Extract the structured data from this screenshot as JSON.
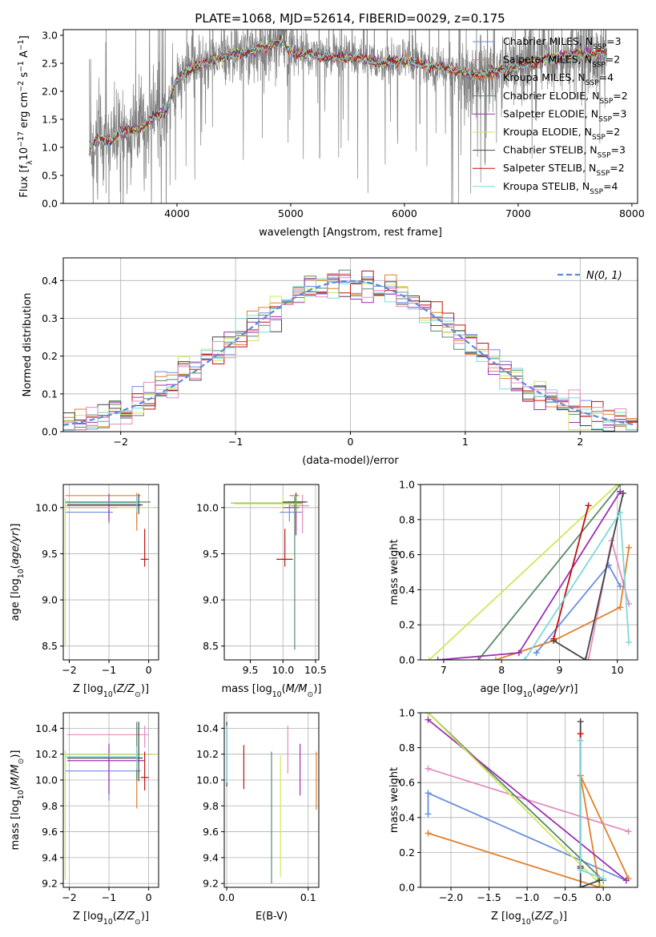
{
  "figure_title": "PLATE=1068, MJD=52614, FIBERID=0029, z=0.175",
  "colors": {
    "Chabrier MILES": "#6a8ee0",
    "Salpeter MILES": "#e07b7b",
    "Kroupa MILES": "#e0802a",
    "Chabrier ELODIE": "#5a8a68",
    "Salpeter ELODIE": "#9b30b0",
    "Kroupa ELODIE": "#cfe85a",
    "Chabrier STELIB": "#444444",
    "Salpeter STELIB": "#c01010",
    "Kroupa STELIB": "#7fd8dc",
    "data": "#808080",
    "gauss": "#5b8bd8",
    "grid": "#b0b0b0",
    "pink": "#e48cc0",
    "green": "#7ac04a"
  },
  "chart_data": [
    {
      "id": "spectrum",
      "type": "line",
      "xlabel": "wavelength [Angstrom, rest frame]",
      "ylabel": "Flux [fλ10⁻¹⁷ erg cm⁻² s⁻¹ A⁻¹]",
      "xlim": [
        3000,
        8050
      ],
      "ylim": [
        0,
        3.1
      ],
      "xticks": [
        4000,
        5000,
        6000,
        7000,
        8000
      ],
      "yticks": [
        0.0,
        0.5,
        1.0,
        1.5,
        2.0,
        2.5,
        3.0
      ],
      "grid": false,
      "legend_position": "top-right",
      "legend": [
        {
          "name": "Chabrier MILES, N",
          "sub": "SSP",
          "n": "=3",
          "color": "#6a8ee0"
        },
        {
          "name": "Salpeter MILES, N",
          "sub": "SSP",
          "n": "=2",
          "color": "#e07b7b"
        },
        {
          "name": "Kroupa MILES, N",
          "sub": "SSP",
          "n": "=4",
          "color": "#e0802a"
        },
        {
          "name": "Chabrier ELODIE, N",
          "sub": "SSP",
          "n": "=2",
          "color": "#5a8a68"
        },
        {
          "name": "Salpeter ELODIE, N",
          "sub": "SSP",
          "n": "=3",
          "color": "#9b30b0"
        },
        {
          "name": "Kroupa ELODIE, N",
          "sub": "SSP",
          "n": "=2",
          "color": "#cfe85a"
        },
        {
          "name": "Chabrier STELIB, N",
          "sub": "SSP",
          "n": "=3",
          "color": "#444444"
        },
        {
          "name": "Salpeter STELIB, N",
          "sub": "SSP",
          "n": "=2",
          "color": "#c01010"
        },
        {
          "name": "Kroupa STELIB, N",
          "sub": "SSP",
          "n": "=4",
          "color": "#7fd8dc"
        }
      ],
      "model_continuum": {
        "x": [
          3230,
          3300,
          3400,
          3500,
          3600,
          3700,
          3800,
          3900,
          4000,
          4100,
          4200,
          4300,
          4400,
          4500,
          4600,
          4700,
          4800,
          4900,
          5000,
          5200,
          5400,
          5600,
          5800,
          6000,
          6200,
          6400,
          6600,
          6800,
          7000,
          7200,
          7500,
          7800
        ],
        "y": [
          1.0,
          1.15,
          1.1,
          1.25,
          1.3,
          1.35,
          1.55,
          1.65,
          2.2,
          2.4,
          2.45,
          2.55,
          2.6,
          2.65,
          2.7,
          2.75,
          2.8,
          2.9,
          2.7,
          2.65,
          2.6,
          2.6,
          2.5,
          2.55,
          2.45,
          2.4,
          2.3,
          2.35,
          2.45,
          2.55,
          2.65,
          2.7
        ]
      }
    },
    {
      "id": "residuals",
      "type": "histogram",
      "xlabel": "(data-model)/error",
      "ylabel": "Normed distribution",
      "xlim": [
        -2.5,
        2.5
      ],
      "ylim": [
        0,
        0.46
      ],
      "xticks": [
        -2,
        -1,
        0,
        1,
        2
      ],
      "yticks": [
        0.0,
        0.1,
        0.2,
        0.3,
        0.4
      ],
      "grid": true,
      "legend_position": "top-right",
      "gauss_label": "N(0, 1)",
      "bin_width": 0.1
    },
    {
      "id": "age_vs_Z",
      "type": "errorbar",
      "xlabel": "Z [log10(Z/Z⊙)]",
      "ylabel": "age [log10(age/yr)]",
      "xlim": [
        -2.15,
        0.25
      ],
      "ylim": [
        8.35,
        10.25
      ],
      "xticks": [
        -2,
        -1,
        0
      ],
      "yticks": [
        8.5,
        9.0,
        9.5,
        10.0
      ],
      "grid": true,
      "points": [
        {
          "x": -1.0,
          "y": 9.95,
          "xerr": [
            1.1,
            0.1
          ],
          "yerr": [
            0.12,
            0.08
          ],
          "color": "#6a8ee0"
        },
        {
          "x": -0.3,
          "y": 10.02,
          "xerr": [
            1.8,
            0.1
          ],
          "yerr": [
            0.18,
            0.12
          ],
          "color": "#e48cc0"
        },
        {
          "x": -0.3,
          "y": 10.13,
          "xerr": [
            1.8,
            0.1
          ],
          "yerr": [
            0.38,
            0.03
          ],
          "color": "#e0802a"
        },
        {
          "x": -0.3,
          "y": 10.06,
          "xerr": [
            1.8,
            0.35
          ],
          "yerr": [
            0.06,
            0.06
          ],
          "color": "#5a8a68"
        },
        {
          "x": -1.0,
          "y": 10.0,
          "xerr": [
            1.05,
            0.2
          ],
          "yerr": [
            0.15,
            0.15
          ],
          "color": "#9b30b0"
        },
        {
          "x": -2.1,
          "y": 10.0,
          "xerr": [
            0.05,
            2.2
          ],
          "yerr": [
            1.5,
            0.1
          ],
          "color": "#cfe85a"
        },
        {
          "x": -0.25,
          "y": 10.03,
          "xerr": [
            1.8,
            0.1
          ],
          "yerr": [
            0.1,
            0.12
          ],
          "color": "#444444"
        },
        {
          "x": -0.1,
          "y": 9.44,
          "xerr": [
            0.1,
            0.1
          ],
          "yerr": [
            0.08,
            0.33
          ],
          "color": "#c01010"
        },
        {
          "x": -0.3,
          "y": 10.05,
          "xerr": [
            1.8,
            0.05
          ],
          "yerr": [
            0.1,
            0.08
          ],
          "color": "#7fd8dc"
        }
      ]
    },
    {
      "id": "age_vs_mass",
      "type": "errorbar",
      "xlabel": "mass [log10(M/M⊙)]",
      "ylabel": "",
      "xlim": [
        9.1,
        10.55
      ],
      "ylim": [
        8.35,
        10.25
      ],
      "xticks": [
        9.5,
        10.0,
        10.5
      ],
      "yticks": [
        8.5,
        9.0,
        9.5,
        10.0
      ],
      "grid": true,
      "points": [
        {
          "x": 10.1,
          "y": 9.95,
          "xerr": [
            0.15,
            0.2
          ],
          "yerr": [
            0.1,
            0.1
          ],
          "color": "#6a8ee0"
        },
        {
          "x": 10.3,
          "y": 10.02,
          "xerr": [
            0.2,
            0.1
          ],
          "yerr": [
            0.3,
            0.12
          ],
          "color": "#e48cc0"
        },
        {
          "x": 10.2,
          "y": 10.13,
          "xerr": [
            0.1,
            0.05
          ],
          "yerr": [
            0.38,
            0.03
          ],
          "color": "#e0802a"
        },
        {
          "x": 10.18,
          "y": 10.06,
          "xerr": [
            0.1,
            0.2
          ],
          "yerr": [
            1.6,
            0.06
          ],
          "color": "#5a8a68"
        },
        {
          "x": 10.2,
          "y": 10.0,
          "xerr": [
            0.2,
            0.05
          ],
          "yerr": [
            0.3,
            0.15
          ],
          "color": "#9b30b0"
        },
        {
          "x": 10.0,
          "y": 10.04,
          "xerr": [
            0.75,
            0.3
          ],
          "yerr": [
            0.05,
            0.1
          ],
          "color": "#cfe85a"
        },
        {
          "x": 10.2,
          "y": 10.06,
          "xerr": [
            0.2,
            0.15
          ],
          "yerr": [
            0.1,
            0.1
          ],
          "color": "#444444"
        },
        {
          "x": 10.03,
          "y": 9.44,
          "xerr": [
            0.13,
            0.12
          ],
          "yerr": [
            0.08,
            0.33
          ],
          "color": "#c01010"
        },
        {
          "x": 10.2,
          "y": 10.05,
          "xerr": [
            1.0,
            0.1
          ],
          "yerr": [
            0.1,
            0.08
          ],
          "color": "#7ac04a"
        }
      ]
    },
    {
      "id": "weight_vs_age",
      "type": "line",
      "xlabel": "age [log10(age/yr)]",
      "ylabel": "mass weight",
      "xlim": [
        6.6,
        10.35
      ],
      "ylim": [
        0,
        1.0
      ],
      "xticks": [
        7,
        8,
        9,
        10
      ],
      "yticks": [
        0.0,
        0.2,
        0.4,
        0.6,
        0.8,
        1.0
      ],
      "grid": true,
      "series": [
        {
          "color": "#6a8ee0",
          "x": [
            8.6,
            9.85,
            10.05
          ],
          "y": [
            0.04,
            0.54,
            0.42
          ]
        },
        {
          "color": "#e48cc0",
          "x": [
            9.5,
            9.9,
            10.2
          ],
          "y": [
            0.0,
            0.68,
            0.32
          ]
        },
        {
          "color": "#e0802a",
          "x": [
            7.9,
            8.9,
            10.05,
            10.2
          ],
          "y": [
            0.0,
            0.11,
            0.3,
            0.64
          ]
        },
        {
          "color": "#5a8a68",
          "x": [
            7.6,
            10.05
          ],
          "y": [
            0.0,
            1.0
          ]
        },
        {
          "color": "#9b30b0",
          "x": [
            6.9,
            8.3,
            10.05
          ],
          "y": [
            0.0,
            0.04,
            0.96
          ]
        },
        {
          "color": "#cfe85a",
          "x": [
            6.75,
            10.0
          ],
          "y": [
            0.0,
            1.0
          ]
        },
        {
          "color": "#444444",
          "x": [
            8.9,
            9.45,
            10.1
          ],
          "y": [
            0.11,
            0.0,
            0.95
          ]
        },
        {
          "color": "#c01010",
          "x": [
            8.9,
            9.5
          ],
          "y": [
            0.12,
            0.88
          ]
        },
        {
          "color": "#7fd8dc",
          "x": [
            8.4,
            10.05,
            10.2
          ],
          "y": [
            0.0,
            0.84,
            0.1
          ]
        }
      ]
    },
    {
      "id": "mass_vs_Z",
      "type": "errorbar",
      "xlabel": "Z [log10(Z/Z⊙)]",
      "ylabel": "mass [log10(M/M⊙)]",
      "xlim": [
        -2.15,
        0.25
      ],
      "ylim": [
        9.17,
        10.52
      ],
      "xticks": [
        -2,
        -1,
        0
      ],
      "yticks": [
        9.2,
        9.4,
        9.6,
        9.8,
        10.0,
        10.2,
        10.4
      ],
      "grid": true,
      "points": [
        {
          "x": -1.0,
          "y": 10.07,
          "xerr": [
            1.1,
            0.8
          ],
          "yerr": [
            0.23,
            0.16
          ],
          "color": "#6a8ee0"
        },
        {
          "x": -0.1,
          "y": 10.35,
          "xerr": [
            1.95,
            0.1
          ],
          "yerr": [
            0.1,
            0.07
          ],
          "color": "#e48cc0"
        },
        {
          "x": -0.3,
          "y": 10.2,
          "xerr": [
            1.8,
            0.1
          ],
          "yerr": [
            0.42,
            0.03
          ],
          "color": "#e0802a"
        },
        {
          "x": -0.3,
          "y": 10.2,
          "xerr": [
            1.8,
            0.4
          ],
          "yerr": [
            0.2,
            0.25
          ],
          "color": "#5a8a68"
        },
        {
          "x": -1.0,
          "y": 10.15,
          "xerr": [
            1.05,
            0.9
          ],
          "yerr": [
            0.26,
            0.13
          ],
          "color": "#9b30b0"
        },
        {
          "x": -2.1,
          "y": 10.2,
          "xerr": [
            0.05,
            2.3
          ],
          "yerr": [
            0.97,
            0.03
          ],
          "color": "#cfe85a"
        },
        {
          "x": -0.25,
          "y": 10.17,
          "xerr": [
            1.8,
            0.1
          ],
          "yerr": [
            0.18,
            0.28
          ],
          "color": "#444444"
        },
        {
          "x": -0.1,
          "y": 10.02,
          "xerr": [
            0.1,
            0.1
          ],
          "yerr": [
            0.1,
            0.2
          ],
          "color": "#c01010"
        },
        {
          "x": -0.3,
          "y": 10.18,
          "xerr": [
            1.8,
            0.05
          ],
          "yerr": [
            0.1,
            0.08
          ],
          "color": "#7fd8dc"
        }
      ]
    },
    {
      "id": "mass_vs_EBV",
      "type": "errorbar",
      "xlabel": "E(B-V)",
      "ylabel": "",
      "xlim": [
        -0.003,
        0.113
      ],
      "ylim": [
        9.17,
        10.52
      ],
      "xticks": [
        0.0,
        0.1
      ],
      "yticks": [
        9.2,
        9.4,
        9.6,
        9.8,
        10.0,
        10.2,
        10.4
      ],
      "grid": true,
      "points": [
        {
          "x": 0.0,
          "y": 10.2,
          "yerr": [
            0.25,
            0.25
          ],
          "color": "#6a8ee0"
        },
        {
          "x": 0.075,
          "y": 10.2,
          "yerr": [
            0.15,
            0.22
          ],
          "color": "#e48cc0"
        },
        {
          "x": 0.11,
          "y": 10.0,
          "yerr": [
            0.23,
            0.22
          ],
          "color": "#e0802a"
        },
        {
          "x": 0.055,
          "y": 9.75,
          "yerr": [
            0.55,
            0.47
          ],
          "color": "#5a8a68"
        },
        {
          "x": 0.09,
          "y": 10.08,
          "yerr": [
            0.2,
            0.2
          ],
          "color": "#9b30b0"
        },
        {
          "x": 0.066,
          "y": 9.72,
          "yerr": [
            0.47,
            0.47
          ],
          "color": "#cfe85a"
        },
        {
          "x": 0.0,
          "y": 10.2,
          "yerr": [
            0.25,
            0.25
          ],
          "color": "#444444"
        },
        {
          "x": 0.021,
          "y": 10.1,
          "yerr": [
            0.17,
            0.17
          ],
          "color": "#c01010"
        },
        {
          "x": 0.0,
          "y": 10.2,
          "yerr": [
            0.22,
            0.22
          ],
          "color": "#7fd8dc"
        }
      ]
    },
    {
      "id": "weight_vs_Z",
      "type": "line",
      "xlabel": "Z [log10(Z/Z⊙)]",
      "ylabel": "mass weight",
      "xlim": [
        -2.4,
        0.45
      ],
      "ylim": [
        0,
        1.0
      ],
      "xticks": [
        -2.0,
        -1.5,
        -1.0,
        -0.5,
        0.0
      ],
      "yticks": [
        0.0,
        0.2,
        0.4,
        0.6,
        0.8,
        1.0
      ],
      "grid": true,
      "series": [
        {
          "color": "#6a8ee0",
          "x": [
            -2.3,
            -2.3,
            0.3
          ],
          "y": [
            0.42,
            0.54,
            0.04
          ]
        },
        {
          "color": "#e48cc0",
          "x": [
            -2.3,
            0.33
          ],
          "y": [
            0.68,
            0.32
          ]
        },
        {
          "color": "#e0802a",
          "x": [
            -2.3,
            -0.05,
            -0.3,
            -0.3,
            0.33
          ],
          "y": [
            0.31,
            0.0,
            0.64,
            0.64,
            0.05
          ]
        },
        {
          "color": "#5a8a68",
          "x": [
            -2.3,
            0.0
          ],
          "y": [
            1.0,
            0.04
          ]
        },
        {
          "color": "#9b30b0",
          "x": [
            -2.3,
            0.3
          ],
          "y": [
            0.96,
            0.04
          ]
        },
        {
          "color": "#cfe85a",
          "x": [
            -2.3,
            0.0
          ],
          "y": [
            1.0,
            0.0
          ]
        },
        {
          "color": "#444444",
          "x": [
            -0.3,
            -0.3,
            -0.3,
            -0.05
          ],
          "y": [
            0.95,
            0.11,
            0.0,
            0.04
          ]
        },
        {
          "color": "#c01010",
          "x": [
            -0.3,
            -0.3
          ],
          "y": [
            0.88,
            0.12
          ]
        },
        {
          "color": "#7fd8dc",
          "x": [
            -0.3,
            -0.3,
            0.0
          ],
          "y": [
            0.84,
            0.1,
            0.05
          ]
        }
      ]
    }
  ]
}
